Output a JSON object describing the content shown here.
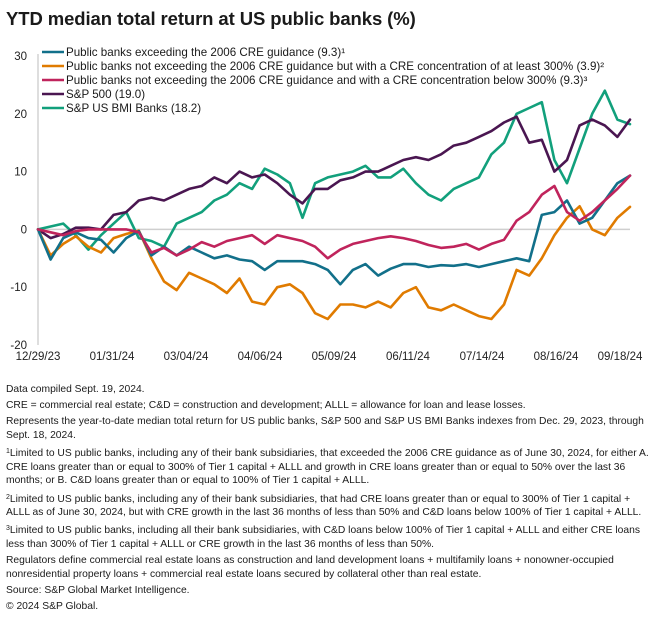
{
  "title": "YTD median total return at US public banks (%)",
  "chart_data": {
    "type": "line",
    "title": "YTD median total return at US public banks (%)",
    "xlabel": "",
    "ylabel": "",
    "ylim": [
      -20,
      30
    ],
    "yticks": [
      30,
      20,
      10,
      0,
      -10,
      -20
    ],
    "xtick_labels": [
      "12/29/23",
      "01/31/24",
      "03/04/24",
      "04/06/24",
      "05/09/24",
      "06/11/24",
      "07/14/24",
      "08/16/24",
      "09/18/24"
    ],
    "x_range": [
      "2023-12-29",
      "2024-09-18"
    ],
    "legend_position": "top-left",
    "grid": false,
    "zero_line": true,
    "series": [
      {
        "name": "Public banks exceeding the 2006 CRE guidance (9.3)¹",
        "color": "#12708a",
        "values": [
          0,
          -5.2,
          -1.5,
          -0.5,
          -1.5,
          -1.8,
          -4,
          -1.5,
          -0.3,
          -4.5,
          -3,
          -4.5,
          -3,
          -4,
          -5,
          -4.5,
          -5.2,
          -5.5,
          -7,
          -5.5,
          -5.5,
          -5.5,
          -6,
          -7,
          -9.5,
          -7,
          -6,
          -8,
          -6.8,
          -6,
          -6,
          -6.5,
          -6.2,
          -6.3,
          -6,
          -6.5,
          -6,
          -5.5,
          -5,
          -5.5,
          2.5,
          3,
          5,
          1,
          2,
          5,
          8,
          9.3
        ]
      },
      {
        "name": "Public banks not exceeding the 2006 CRE guidance but with a CRE concentration of at least 300% (3.9)²",
        "color": "#e07b00",
        "values": [
          0,
          -4.5,
          -2.5,
          -1.2,
          -3,
          -4,
          -1.5,
          -0.8,
          -0.2,
          -5,
          -9,
          -10.5,
          -7.5,
          -8.5,
          -9.5,
          -11,
          -8.5,
          -12.5,
          -13,
          -10,
          -9.5,
          -11,
          -14.5,
          -15.5,
          -13,
          -13,
          -13.5,
          -12.5,
          -13.5,
          -11,
          -10,
          -13.5,
          -14,
          -13,
          -14,
          -15,
          -15.5,
          -13,
          -7,
          -8,
          -5,
          -1,
          2,
          4,
          0,
          -1,
          2,
          3.9
        ]
      },
      {
        "name": "Public banks not exceeding the 2006 CRE guidance and with a CRE concentration below 300% (9.3)³",
        "color": "#c0245c",
        "values": [
          0,
          -0.5,
          -1,
          -0.3,
          0,
          0,
          0,
          0,
          -0.5,
          -4,
          -3.2,
          -4.5,
          -3.5,
          -2.2,
          -3,
          -2,
          -1.5,
          -1,
          -2.5,
          -1,
          -1.5,
          -2,
          -3,
          -5,
          -3.5,
          -2.5,
          -2,
          -1.5,
          -1.2,
          -1.5,
          -2,
          -2.7,
          -3.2,
          -3,
          -2.5,
          -3.5,
          -2.5,
          -1.8,
          1.5,
          3,
          6,
          7.5,
          3,
          1.5,
          3,
          5,
          7,
          9.3
        ]
      },
      {
        "name": "S&P 500 (19.0)",
        "color": "#4a1651",
        "values": [
          0,
          -1.5,
          -0.8,
          0.3,
          0.3,
          0,
          2.5,
          3,
          5,
          5.5,
          5,
          6,
          7,
          7.5,
          9,
          8,
          10,
          9,
          9.5,
          8,
          6,
          4.5,
          7,
          7,
          8.5,
          9,
          10,
          10,
          11,
          12,
          12.5,
          12,
          13,
          14.5,
          15,
          16,
          17,
          18.5,
          19.5,
          15,
          15.5,
          10,
          12,
          18,
          19,
          18,
          16,
          19
        ]
      },
      {
        "name": "S&P US BMI Banks (18.2)",
        "color": "#12a07c",
        "values": [
          0,
          0.5,
          1,
          -1,
          -3.5,
          -1,
          1,
          3,
          -1.5,
          -2,
          -3,
          1,
          2,
          3,
          5,
          6,
          8,
          7,
          10.5,
          9.5,
          8,
          2,
          8,
          9,
          9.5,
          10,
          11,
          9,
          9,
          10.5,
          8,
          6,
          5,
          7,
          8,
          9,
          13,
          15,
          20,
          21,
          22,
          12,
          8,
          14,
          20,
          24,
          19,
          18.2
        ]
      }
    ]
  },
  "notes": {
    "compiled": "Data compiled Sept. 19, 2024.",
    "abbreviations": "CRE = commercial real estate; C&D = construction and development; ALLL = allowance for loan and lease losses.",
    "represents": "Represents the year-to-date median total return for US public banks, S&P 500 and S&P US BMI Banks indexes from Dec. 29, 2023, through Sept. 18, 2024.",
    "footnote_1_mark": "1",
    "footnote_1": "Limited to US public banks, including any of their bank subsidiaries, that exceeded the 2006 CRE guidance as of June 30, 2024, for either A. CRE loans greater than or equal to 300% of Tier 1 capital + ALLL and growth in CRE loans greater than or equal to 50% over the last 36 months; or B. C&D loans greater than or equal to 100% of Tier 1 capital + ALLL.",
    "footnote_2_mark": "2",
    "footnote_2": "Limited to US public banks, including any of their bank subsidiaries, that had CRE loans greater than or equal to 300% of Tier 1 capital + ALLL as of June 30, 2024, but with CRE growth in the last 36 months of less than 50% and C&D loans below 100% of Tier 1 capital + ALLL.",
    "footnote_3_mark": "3",
    "footnote_3": "Limited to US public banks, including all their bank subsidiaries, with C&D loans below 100% of Tier 1 capital + ALLL and either CRE loans less than 300% of Tier 1 capital + ALLL or CRE growth in the last 36 months of less than 50%.",
    "regulators": "Regulators define commercial real estate loans as construction and land development loans + multifamily loans + nonowner-occupied nonresidential property loans + commercial real estate loans secured by collateral other than real estate.",
    "source": "Source: S&P Global Market Intelligence.",
    "copyright": "© 2024 S&P Global."
  }
}
